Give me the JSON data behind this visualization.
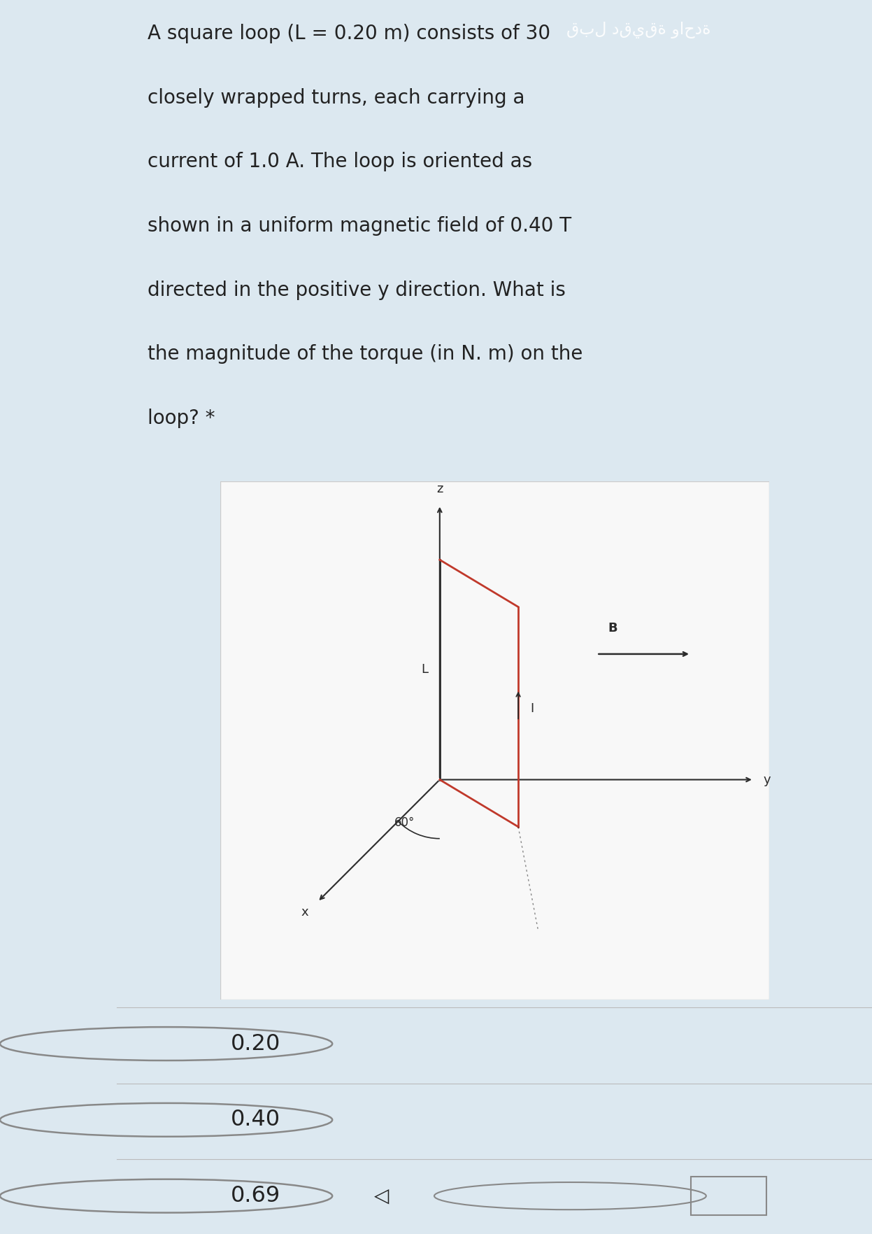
{
  "title_line1": "A square loop (L = 0.20 m) consists of 30",
  "title_line2": "closely wrapped turns, each carrying a",
  "title_line3": "current of 1.0 A. The loop is oriented as",
  "title_line4": "shown in a uniform magnetic field of 0.40 T",
  "title_line5": "directed in the positive y direction. What is",
  "title_line6": "the magnitude of the torque (in N. m) on the",
  "title_line7": "loop?",
  "arabic_text": "قبل دقيقة واحدة",
  "question_star": "*",
  "bg_color_top": "#dce8f0",
  "bg_color_diagram": "#f8f8f8",
  "bg_color_choices": "#e8e8e8",
  "text_color": "#222222",
  "diagram_line_color": "#2b2b2b",
  "loop_color_dark": "#2b2b2b",
  "loop_color_red": "#c0392b",
  "choices": [
    "0.20",
    "0.40",
    "0.69"
  ],
  "angle_label": "60°",
  "axis_x": "x",
  "axis_y": "y",
  "axis_z": "z",
  "B_label": "B",
  "L_label": "L",
  "I_label": "I"
}
